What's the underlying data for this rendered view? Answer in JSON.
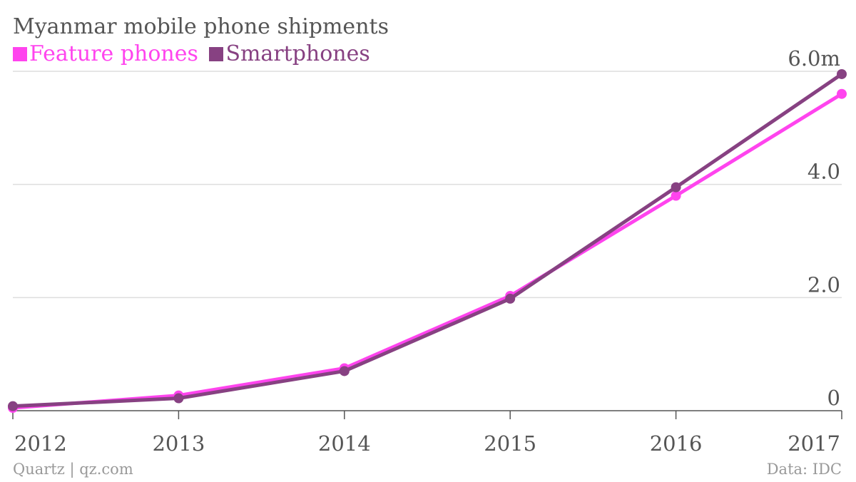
{
  "title": "Myanmar mobile phone shipments",
  "source": "Quartz | qz.com",
  "data_credit": "Data: IDC",
  "chart_data": {
    "type": "line",
    "title": "Myanmar mobile phone shipments",
    "x": [
      "2012",
      "2013",
      "2014",
      "2015",
      "2016",
      "2017"
    ],
    "series": [
      {
        "name": "Feature phones",
        "color": "#ff44ee",
        "values": [
          0.05,
          0.27,
          0.75,
          2.03,
          3.8,
          5.6
        ]
      },
      {
        "name": "Smartphones",
        "color": "#874182",
        "values": [
          0.08,
          0.22,
          0.7,
          1.98,
          3.95,
          5.95
        ]
      }
    ],
    "y_ticks": [
      {
        "value": 0,
        "label": "0"
      },
      {
        "value": 2,
        "label": "2.0"
      },
      {
        "value": 4,
        "label": "4.0"
      },
      {
        "value": 6,
        "label": "6.0m"
      }
    ],
    "ylim": [
      0,
      6
    ],
    "xlabel": "",
    "ylabel": "",
    "grid": true,
    "legend_position": "top-left"
  }
}
